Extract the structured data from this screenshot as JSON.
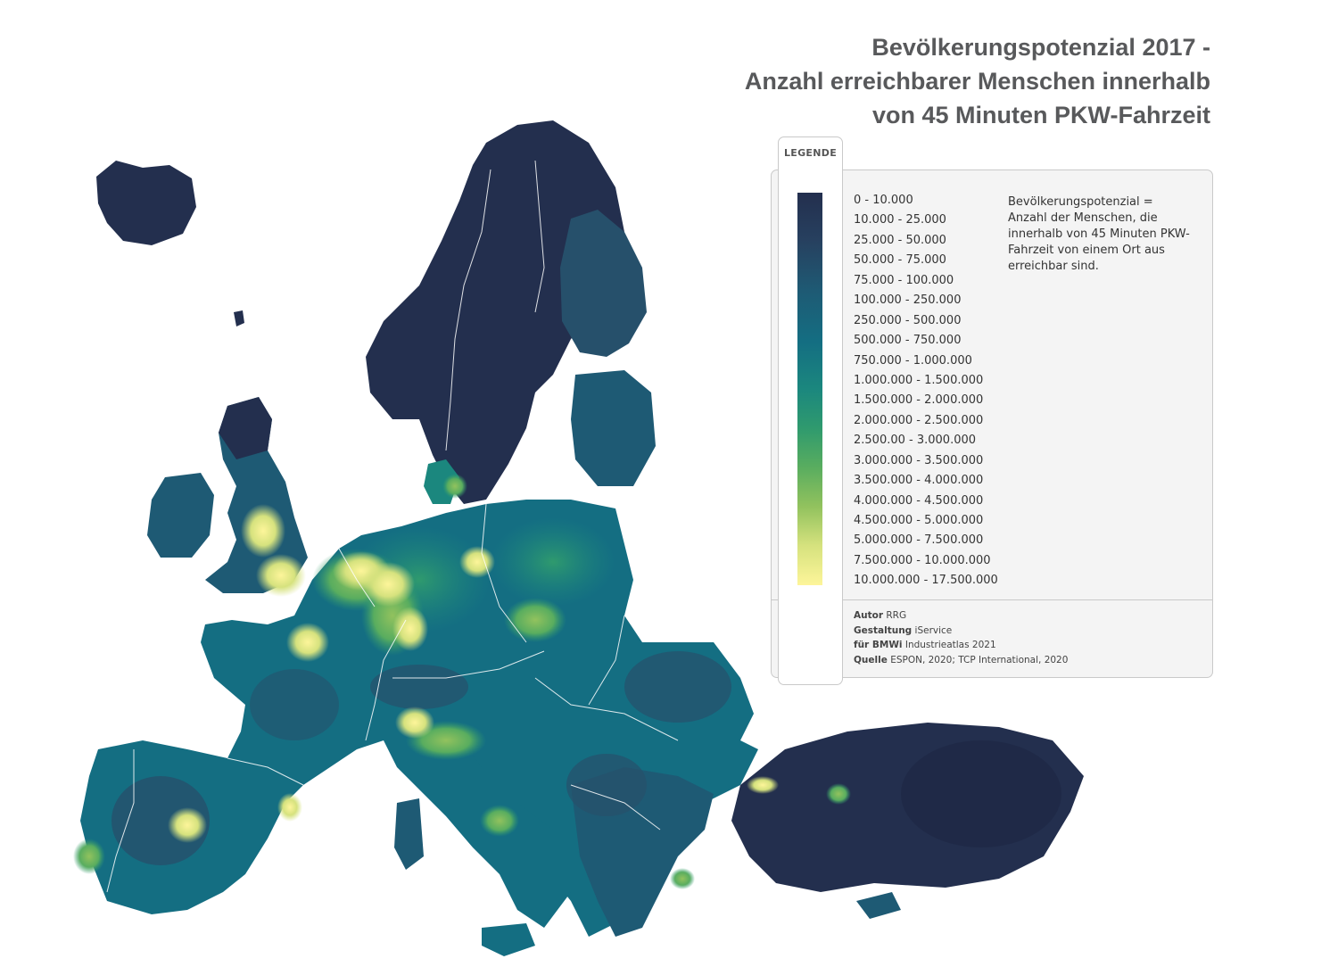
{
  "title": {
    "line1": "Bevölkerungspotenzial 2017 -",
    "line2": "Anzahl erreichbarer Menschen innerhalb",
    "line3": "von 45 Minuten PKW-Fahrzeit"
  },
  "legend": {
    "heading": "LEGENDE",
    "classes": [
      "0 - 10.000",
      "10.000 - 25.000",
      "25.000 - 50.000",
      "50.000 - 75.000",
      "75.000 - 100.000",
      "100.000 - 250.000",
      "250.000 - 500.000",
      "500.000 - 750.000",
      "750.000 - 1.000.000",
      "1.000.000 - 1.500.000",
      "1.500.000 - 2.000.000",
      "2.000.000 - 2.500.000",
      "2.500.00 - 3.000.000",
      "3.000.000 - 3.500.000",
      "3.500.000 - 4.000.000",
      "4.000.000 - 4.500.000",
      "4.500.000 - 5.000.000",
      "5.000.000 - 7.500.000",
      "7.500.000 - 10.000.000",
      "10.000.000 - 17.500.000"
    ],
    "gradient_colors": [
      "#232f4e",
      "#1e5a74",
      "#146e82",
      "#1b877e",
      "#2f9a6e",
      "#59ad5f",
      "#92c25e",
      "#d6e27e",
      "#fdf59a"
    ],
    "note": "Bevölkerungspotenzial = Anzahl der Menschen, die innerhalb von 45 Minuten PKW-Fahrzeit von einem Ort aus erreichbar sind."
  },
  "credits": {
    "author_label": "Autor",
    "author": "RRG",
    "design_label": "Gestaltung",
    "design": "iService",
    "client_label": "für BMWi",
    "client": "Industrieatlas 2021",
    "source_label": "Quelle",
    "source": "ESPON, 2020; TCP International, 2020"
  },
  "colors": {
    "very_low": "#232f4e",
    "low": "#26506b",
    "medium": "#146e82",
    "high": "#2f9a6e",
    "very_high": "#fdf59a",
    "border": "#ffffff"
  }
}
